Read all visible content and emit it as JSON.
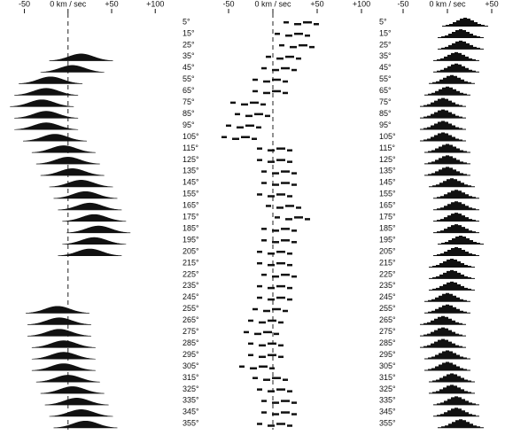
{
  "chart_data": [
    {
      "type": "ridge",
      "xlim": [
        -78,
        115
      ],
      "xticks": [
        -50,
        {
          "value": 0,
          "label": "0 km / sec"
        },
        {
          "value": 50,
          "label": "+50"
        },
        {
          "value": 100,
          "label": "+100"
        }
      ],
      "zero_line": true,
      "color": "#111",
      "values": [
        null,
        null,
        null,
        15,
        5,
        -20,
        -25,
        -30,
        -25,
        -25,
        -15,
        -5,
        0,
        5,
        15,
        20,
        25,
        30,
        35,
        30,
        25,
        null,
        null,
        null,
        null,
        -12,
        -10,
        -10,
        -5,
        -5,
        -5,
        0,
        5,
        10,
        15,
        20
      ]
    },
    {
      "type": "dashes",
      "xlim": [
        -75,
        115
      ],
      "xticks": [
        -50,
        {
          "value": 0,
          "label": "0 km / sec"
        },
        {
          "value": 50,
          "label": "+50"
        },
        {
          "value": 100,
          "label": "+100"
        }
      ],
      "zero_line": true,
      "color": "#111",
      "categories": [
        "5°",
        "15°",
        "25°",
        "35°",
        "45°",
        "55°",
        "65°",
        "75°",
        "85°",
        "95°",
        "105°",
        "115°",
        "125°",
        "135°",
        "145°",
        "155°",
        "165°",
        "175°",
        "185°",
        "195°",
        "205°",
        "215°",
        "225°",
        "235°",
        "245°",
        "255°",
        "265°",
        "275°",
        "285°",
        "295°",
        "305°",
        "315°",
        "325°",
        "335°",
        "345°",
        "355°"
      ],
      "values": [
        30,
        20,
        25,
        10,
        5,
        -5,
        -5,
        -30,
        -25,
        -35,
        -40,
        0,
        0,
        5,
        5,
        0,
        10,
        20,
        5,
        5,
        0,
        0,
        5,
        0,
        0,
        -5,
        -10,
        -15,
        -10,
        -10,
        -20,
        -5,
        0,
        5,
        5,
        0
      ]
    },
    {
      "type": "histogram",
      "xlim": [
        -65,
        65
      ],
      "xticks": [
        -50,
        {
          "value": 0,
          "label": "0 km / sec"
        },
        {
          "value": 50,
          "label": "+50"
        }
      ],
      "zero_line": false,
      "color": "#111",
      "categories": [
        "5°",
        "15°",
        "25°",
        "35°",
        "45°",
        "55°",
        "65°",
        "75°",
        "85°",
        "95°",
        "105°",
        "115°",
        "125°",
        "135°",
        "145°",
        "155°",
        "165°",
        "175°",
        "185°",
        "195°",
        "205°",
        "215°",
        "225°",
        "235°",
        "245°",
        "255°",
        "265°",
        "275°",
        "285°",
        "295°",
        "305°",
        "315°",
        "325°",
        "335°",
        "345°",
        "355°"
      ],
      "values": [
        20,
        15,
        15,
        10,
        10,
        5,
        0,
        -5,
        -5,
        -5,
        -5,
        0,
        0,
        0,
        5,
        10,
        10,
        10,
        10,
        15,
        10,
        5,
        5,
        5,
        0,
        0,
        -5,
        -5,
        -5,
        0,
        0,
        5,
        5,
        10,
        10,
        15
      ]
    }
  ]
}
